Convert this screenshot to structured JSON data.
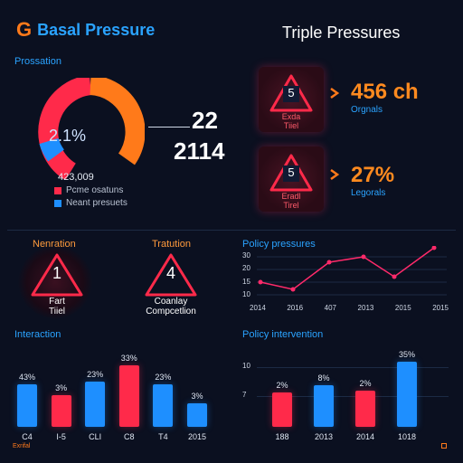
{
  "header": {
    "logo_glyph": "G",
    "title": "Basal Pressure",
    "right_title": "Triple Pressures"
  },
  "donut": {
    "section_label": "Prossation",
    "center_value": "2.1%",
    "below_value": "423,009",
    "legend": [
      {
        "label": "Pcme osatuns",
        "color": "#ff2a4a"
      },
      {
        "label": "Neant presuets",
        "color": "#1e8fff"
      }
    ],
    "big_number_1": "22",
    "big_number_2": "2114",
    "colors": {
      "red": "#ff2a4a",
      "orange": "#ff7a1a",
      "blue": "#1e8fff"
    }
  },
  "warnings": [
    {
      "number": "5",
      "caption_1": "Exda",
      "caption_2": "Tiiel",
      "stat": "456 ch",
      "stat_sub": "Orgnals"
    },
    {
      "number": "5",
      "caption_1": "Eradl",
      "caption_2": "Tirel",
      "stat": "27%",
      "stat_sub": "Legorals"
    }
  ],
  "mid_left": {
    "left_label": "Nenration",
    "right_label": "Tratution",
    "badges": [
      {
        "number": "1",
        "caption_1": "Fart",
        "caption_2": "Tiiel"
      },
      {
        "number": "4",
        "caption_1": "Coanlay",
        "caption_2": "Compcetlion"
      }
    ]
  },
  "policy_pressures": {
    "title": "Policy pressures",
    "y_ticks": [
      "30",
      "20",
      "15",
      "10"
    ],
    "x_ticks": [
      "2014",
      "2016",
      "407",
      "2013",
      "2015",
      "2015"
    ]
  },
  "interaction": {
    "title": "Interaction",
    "bars": [
      {
        "label": "C4",
        "value_label": "43%",
        "color": "#1e8fff",
        "h": 0.62
      },
      {
        "label": "I-5",
        "value_label": "3%",
        "color": "#ff2a4a",
        "h": 0.46
      },
      {
        "label": "CLI",
        "value_label": "23%",
        "color": "#1e8fff",
        "h": 0.66
      },
      {
        "label": "C8",
        "value_label": "33%",
        "color": "#ff2a4a",
        "h": 0.9
      },
      {
        "label": "T4",
        "value_label": "23%",
        "color": "#1e8fff",
        "h": 0.62
      },
      {
        "label": "2015",
        "value_label": "3%",
        "color": "#1e8fff",
        "h": 0.34
      }
    ]
  },
  "policy_intervention": {
    "title": "Policy intervention",
    "y_ticks": [
      "10",
      "7"
    ],
    "bars": [
      {
        "label": "188",
        "value_label": "2%",
        "color": "#ff2a4a",
        "h": 0.5
      },
      {
        "label": "2013",
        "value_label": "8%",
        "color": "#1e8fff",
        "h": 0.6
      },
      {
        "label": "2014",
        "value_label": "2%",
        "color": "#ff2a4a",
        "h": 0.52
      },
      {
        "label": "1018",
        "value_label": "35%",
        "color": "#1e8fff",
        "h": 0.95
      }
    ]
  },
  "footer": {
    "left": "Exrifal"
  }
}
